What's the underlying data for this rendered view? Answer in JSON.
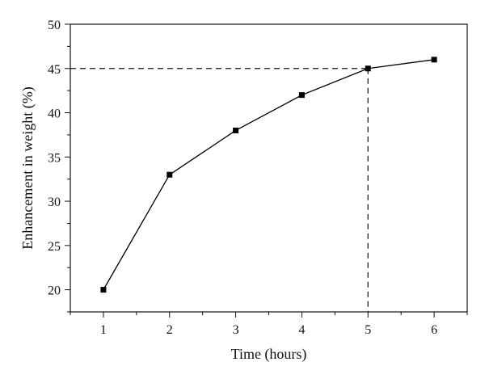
{
  "chart_data": {
    "type": "line",
    "title": "",
    "xlabel": "Time (hours)",
    "ylabel": "Enhancement in weight (%)",
    "xlim": [
      0.5,
      6.5
    ],
    "ylim": [
      17.5,
      50
    ],
    "x_ticks": [
      1,
      2,
      3,
      4,
      5,
      6
    ],
    "y_ticks": [
      20,
      25,
      30,
      35,
      40,
      45,
      50
    ],
    "grid": false,
    "legend": "none",
    "series": [
      {
        "x": [
          1,
          2,
          3,
          4,
          5,
          6
        ],
        "y": [
          20,
          33,
          38,
          42,
          45,
          46
        ],
        "marker": "square",
        "color": "#000000"
      }
    ],
    "annotations": [
      {
        "type": "dashed-guide",
        "x": 5,
        "y": 45
      }
    ]
  }
}
